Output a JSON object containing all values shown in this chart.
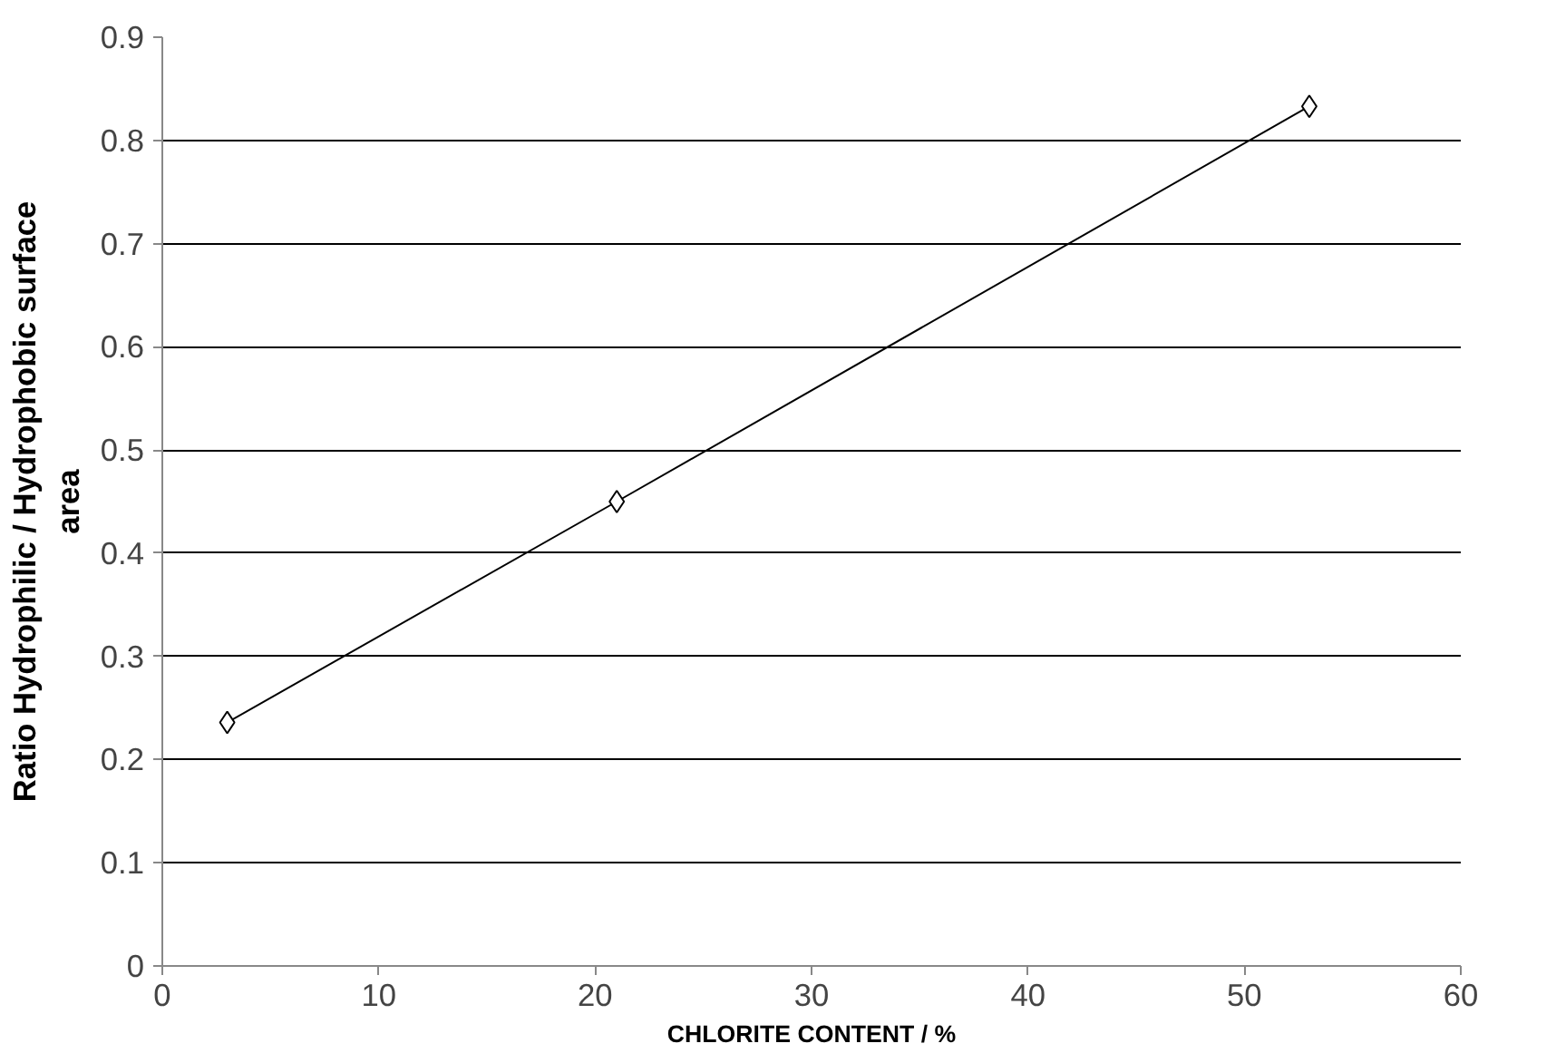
{
  "chart_data": {
    "type": "line",
    "xlabel": "CHLORITE CONTENT / %",
    "ylabel": "Ratio Hydrophilic / Hydrophobic surface area",
    "x": [
      3,
      21,
      53
    ],
    "series": [
      {
        "color": "#000000",
        "values": [
          0.236,
          0.45,
          0.833
        ]
      }
    ],
    "xlim": [
      0,
      60
    ],
    "xticks": [
      0,
      10,
      20,
      30,
      40,
      50,
      60
    ],
    "ylim": [
      0,
      0.9
    ],
    "yticks": [
      0,
      0.1,
      0.2,
      0.3,
      0.4,
      0.5,
      0.6,
      0.7,
      0.8,
      0.9
    ],
    "grid": "y",
    "marker": "diamond",
    "line_style": "solid"
  }
}
